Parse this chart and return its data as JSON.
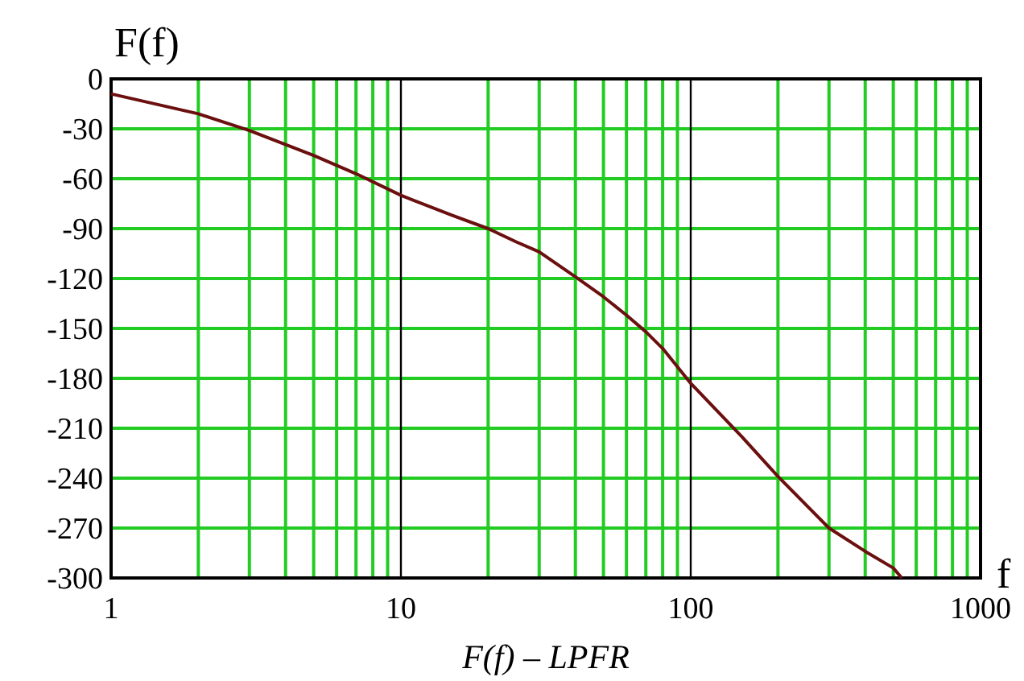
{
  "chart_data": {
    "type": "line",
    "ylabel": "F(f)",
    "xlabel": "f",
    "annotations": [
      "F(f) – LPFR"
    ],
    "log": "x",
    "grid": true,
    "marker": "none",
    "line_style": "solid",
    "xlim": [
      1,
      1000
    ],
    "ylim": [
      -300,
      0
    ],
    "xticks": [
      1,
      {
        "value": 2,
        "label": null
      },
      {
        "value": 3,
        "label": null
      },
      {
        "value": 4,
        "label": null
      },
      {
        "value": 5,
        "label": null
      },
      {
        "value": 6,
        "label": null
      },
      {
        "value": 7,
        "label": null
      },
      {
        "value": 8,
        "label": null
      },
      {
        "value": 9,
        "label": null
      },
      10,
      {
        "value": 20,
        "label": null
      },
      {
        "value": 30,
        "label": null
      },
      {
        "value": 40,
        "label": null
      },
      {
        "value": 50,
        "label": null
      },
      {
        "value": 60,
        "label": null
      },
      {
        "value": 70,
        "label": null
      },
      {
        "value": 80,
        "label": null
      },
      {
        "value": 90,
        "label": null
      },
      100,
      {
        "value": 200,
        "label": null
      },
      {
        "value": 300,
        "label": null
      },
      {
        "value": 400,
        "label": null
      },
      {
        "value": 500,
        "label": null
      },
      {
        "value": 600,
        "label": null
      },
      {
        "value": 700,
        "label": null
      },
      {
        "value": 800,
        "label": null
      },
      {
        "value": 900,
        "label": null
      },
      1000
    ],
    "yticks": [
      0,
      -30,
      -60,
      -90,
      -120,
      -150,
      -180,
      -210,
      -240,
      -270,
      -300
    ],
    "series": [
      {
        "color": "#6b0f0f",
        "x": [
          1,
          2,
          3,
          5,
          7,
          10,
          15,
          20,
          25,
          30,
          40,
          50,
          60,
          70,
          80,
          100,
          150,
          200,
          300,
          400,
          500,
          535
        ],
        "values": [
          -9,
          -21,
          -31,
          -46,
          -57,
          -70,
          -82,
          -90,
          -98,
          -104,
          -119,
          -131,
          -142,
          -152,
          -162,
          -183,
          -215,
          -239,
          -270,
          -284,
          -294,
          -300
        ]
      }
    ]
  }
}
